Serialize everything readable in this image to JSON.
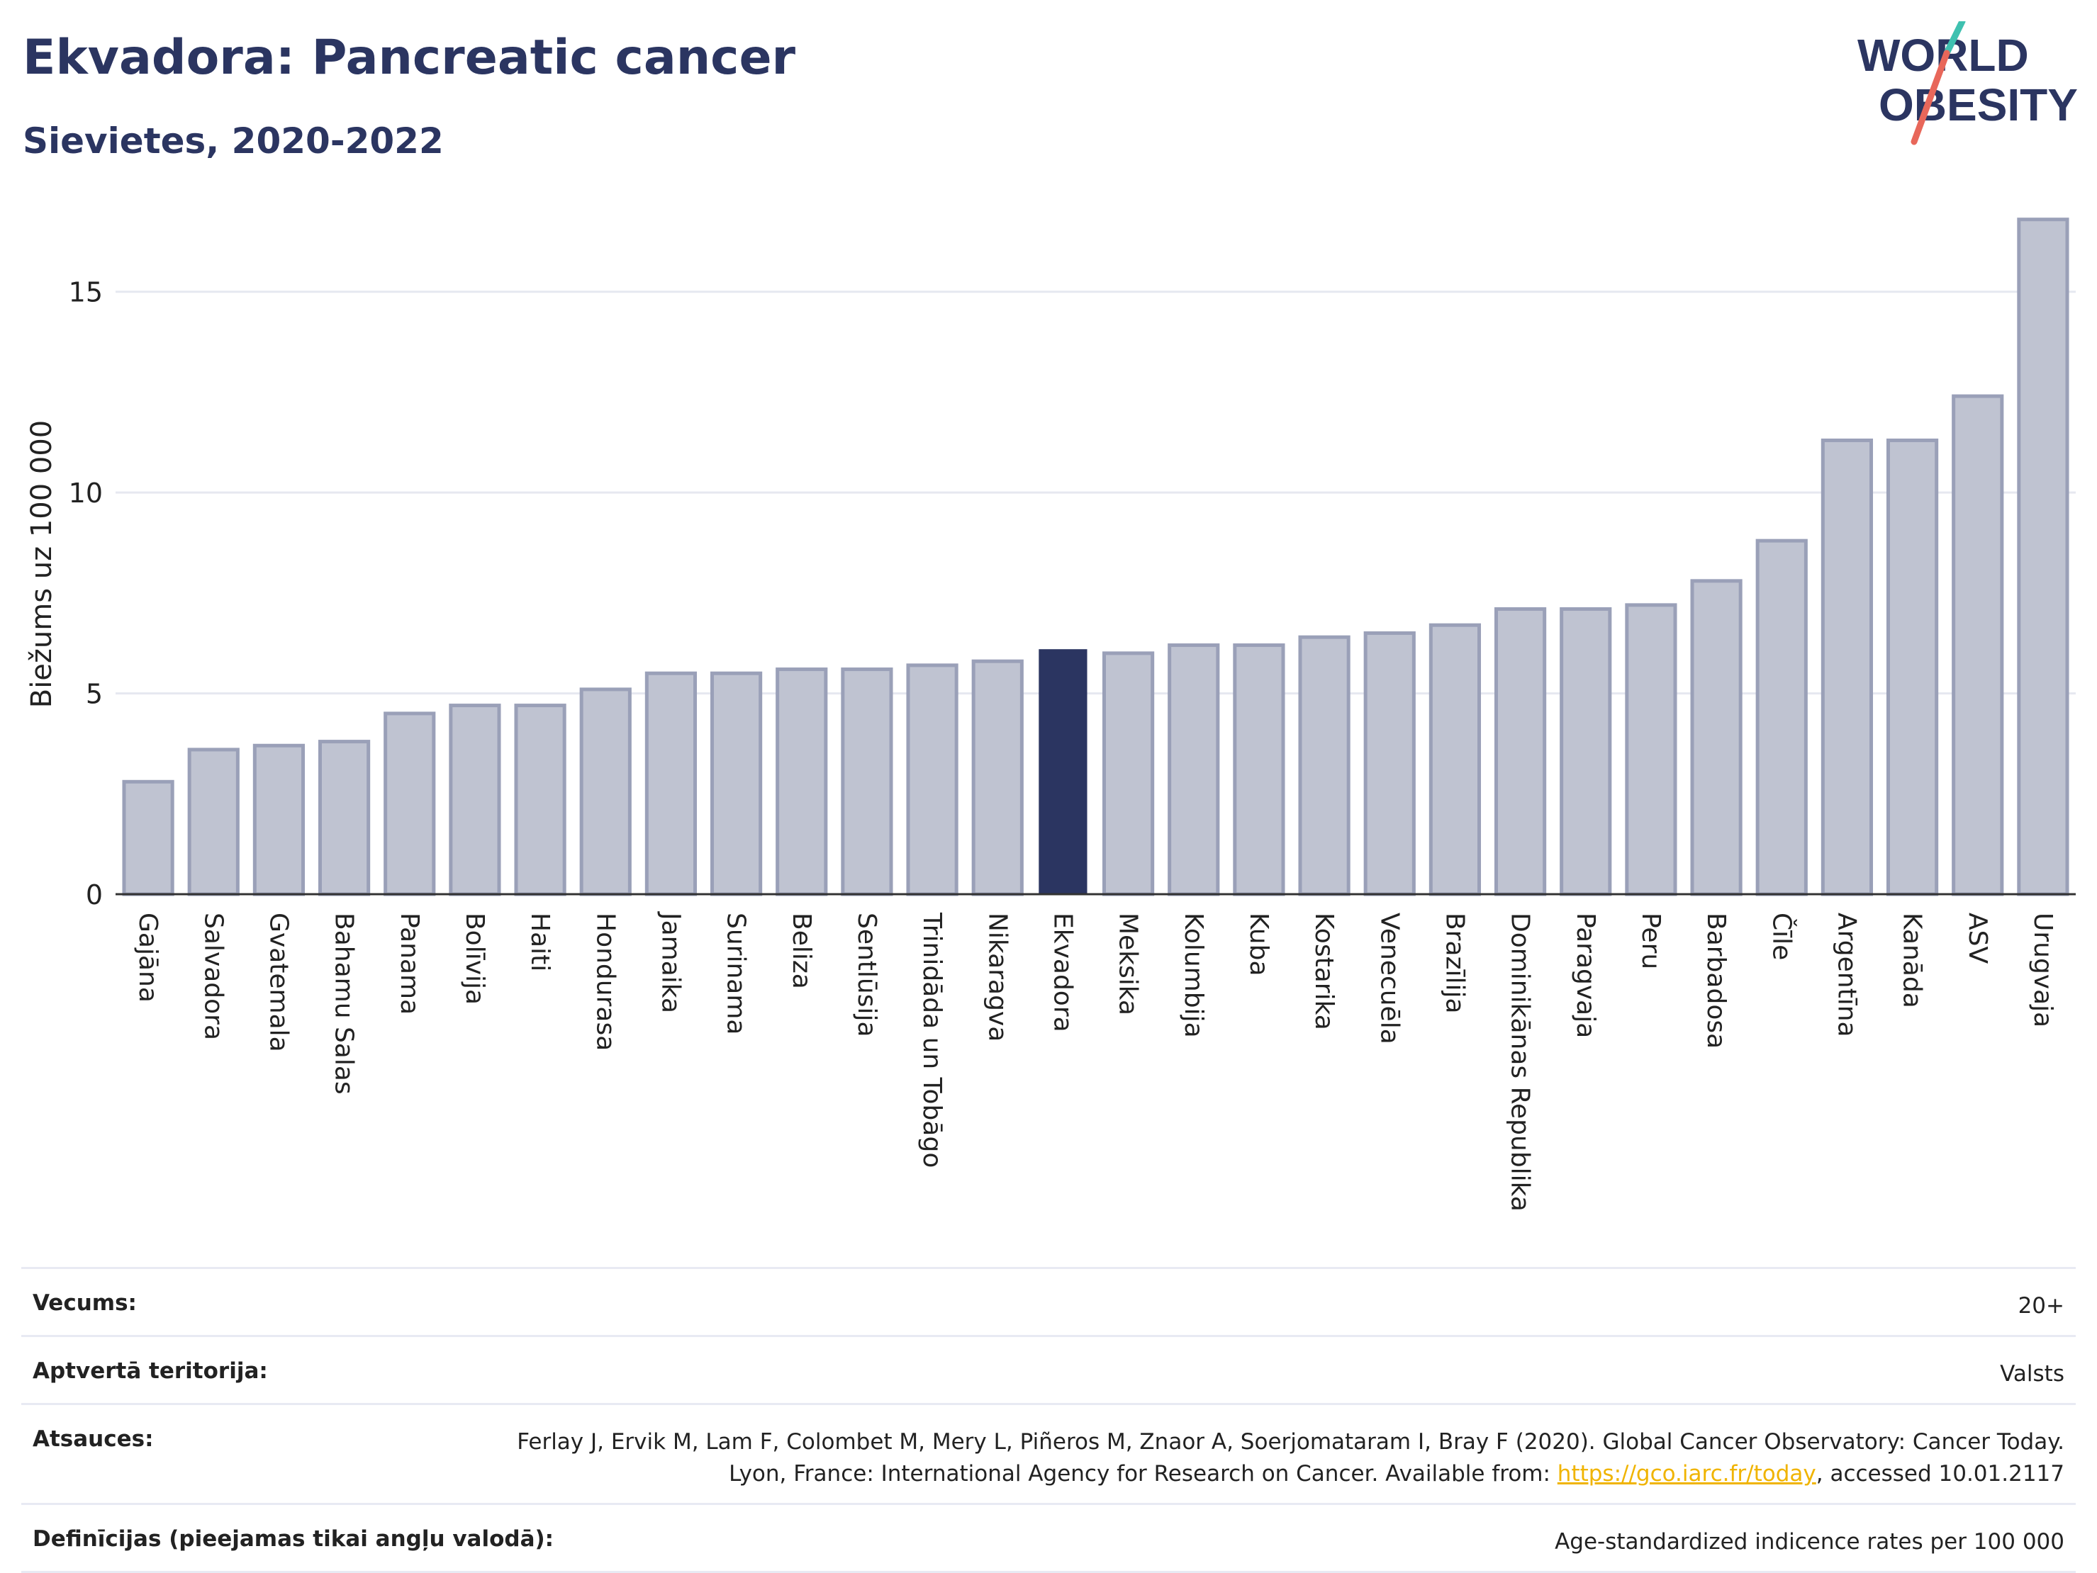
{
  "header": {
    "title": "Ekvadora: Pancreatic cancer",
    "subtitle": "Sievietes, 2020-2022"
  },
  "logo": {
    "line1": "WORLD",
    "line2": "OBESITY"
  },
  "colors": {
    "bar": "#bfc3d1",
    "bar_stroke": "#9aa0b8",
    "highlight": "#2b3561",
    "title": "#2b3561",
    "link": "#f0b400"
  },
  "chart_data": {
    "type": "bar",
    "ylabel": "Biežums uz 100 000",
    "ylim": [
      0,
      17.5
    ],
    "yticks": [
      0,
      5,
      10,
      15
    ],
    "grid": true,
    "highlight": "Ekvadora",
    "categories": [
      "Gajāna",
      "Salvadora",
      "Gvatemala",
      "Bahamu Salas",
      "Panama",
      "Bolīvija",
      "Haiti",
      "Hondurasa",
      "Jamaika",
      "Surinama",
      "Beliza",
      "Sentlūsija",
      "Trinidāda un Tobāgo",
      "Nikaragva",
      "Ekvadora",
      "Meksika",
      "Kolumbija",
      "Kuba",
      "Kostarika",
      "Venecuēla",
      "Brazīlija",
      "Dominikānas Republika",
      "Paragvaja",
      "Peru",
      "Barbadosa",
      "Čīle",
      "Argentīna",
      "Kanāda",
      "ASV",
      "Urugvaja"
    ],
    "values": [
      2.8,
      3.6,
      3.7,
      3.8,
      4.5,
      4.7,
      4.7,
      5.1,
      5.5,
      5.5,
      5.6,
      5.6,
      5.7,
      5.8,
      6.1,
      6.0,
      6.2,
      6.2,
      6.4,
      6.5,
      6.7,
      7.1,
      7.1,
      7.2,
      7.8,
      8.8,
      11.3,
      11.3,
      12.4,
      16.8
    ]
  },
  "footer": {
    "age_label": "Vecums:",
    "age_value": "20+",
    "territory_label": "Aptvertā teritorija:",
    "territory_value": "Valsts",
    "refs_label": "Atsauces:",
    "refs_text": "Ferlay J, Ervik M, Lam F, Colombet M, Mery L, Piñeros M, Znaor A, Soerjomataram I, Bray F (2020). Global Cancer Observatory: Cancer Today. Lyon, France: International Agency for Research on Cancer. Available from: ",
    "refs_link": "https://gco.iarc.fr/today",
    "refs_tail": ", accessed 10.01.2117",
    "defs_label": "Definīcijas (pieejamas tikai angļu valodā):",
    "defs_value": "Age-standardized indicence rates per 100 000"
  }
}
